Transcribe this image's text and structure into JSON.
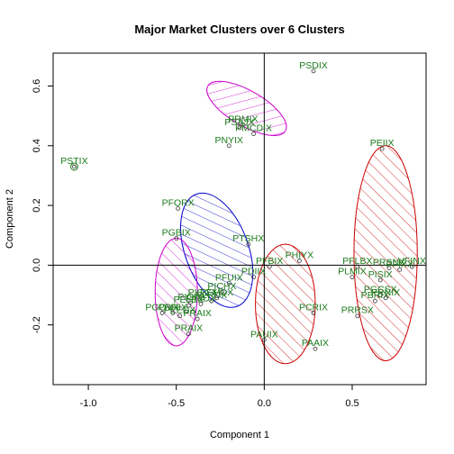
{
  "chart_data": {
    "type": "scatter",
    "title": "Major Market Clusters over 6 Clusters",
    "xlabel": "Component 1",
    "ylabel": "Component 2",
    "xlim": [
      -1.2,
      0.92
    ],
    "ylim": [
      -0.4,
      0.71
    ],
    "xticks": [
      -1.0,
      -0.5,
      0.0,
      0.5
    ],
    "xtick_labels": [
      "-1.0",
      "-0.5",
      "0.0",
      "0.5"
    ],
    "yticks": [
      -0.2,
      0.0,
      0.2,
      0.4,
      0.6
    ],
    "ytick_labels": [
      "-0.2",
      "0.0",
      "0.2",
      "0.4",
      "0.6"
    ],
    "reference_lines": {
      "x": 0,
      "y": 0
    },
    "colors": {
      "points": "#1a7a1a",
      "axes": "#000000"
    },
    "clusters": [
      {
        "color": "#cc00cc",
        "center": [
          -0.1,
          0.525
        ],
        "rx": 0.1,
        "ry": 0.15,
        "angle_deg": 60
      },
      {
        "color": "#0000cc",
        "center": [
          -0.27,
          0.05
        ],
        "rx": 0.18,
        "ry": 0.2,
        "angle_deg": 20
      },
      {
        "color": "#cc00cc",
        "center": [
          -0.5,
          -0.09
        ],
        "rx": 0.12,
        "ry": 0.18,
        "angle_deg": 0
      },
      {
        "color": "#cc0000",
        "center": [
          0.12,
          -0.13
        ],
        "rx": 0.17,
        "ry": 0.2,
        "angle_deg": 0
      },
      {
        "color": "#cc0000",
        "center": [
          0.69,
          0.04
        ],
        "rx": 0.18,
        "ry": 0.36,
        "angle_deg": 0
      },
      {
        "color": "#1a7a1a",
        "center": [
          -1.08,
          0.33
        ],
        "rx": 0.02,
        "ry": 0.012,
        "angle_deg": 0
      }
    ],
    "points": [
      {
        "label": "PSDIX",
        "x": 0.28,
        "y": 0.65
      },
      {
        "label": "PRMIX",
        "x": -0.12,
        "y": 0.47
      },
      {
        "label": "PSAJX",
        "x": -0.14,
        "y": 0.46
      },
      {
        "label": "PMCDIX",
        "x": -0.06,
        "y": 0.44
      },
      {
        "label": "PNYIX",
        "x": -0.2,
        "y": 0.4
      },
      {
        "label": "PSTIX",
        "x": -1.08,
        "y": 0.33
      },
      {
        "label": "PFORX",
        "x": -0.49,
        "y": 0.19
      },
      {
        "label": "PGBIX",
        "x": -0.5,
        "y": 0.09
      },
      {
        "label": "PTSHX",
        "x": -0.09,
        "y": 0.07
      },
      {
        "label": "PHIYX",
        "x": 0.2,
        "y": 0.015
      },
      {
        "label": "PFBIX",
        "x": 0.03,
        "y": -0.005
      },
      {
        "label": "PDIIX",
        "x": -0.06,
        "y": -0.04
      },
      {
        "label": "PFUIX",
        "x": -0.2,
        "y": -0.06
      },
      {
        "label": "PICHX",
        "x": -0.24,
        "y": -0.09
      },
      {
        "label": "PIGCX",
        "x": -0.35,
        "y": -0.11
      },
      {
        "label": "PLRDX",
        "x": -0.3,
        "y": -0.12
      },
      {
        "label": "PEMDX",
        "x": -0.27,
        "y": -0.11
      },
      {
        "label": "PIOIX",
        "x": -0.42,
        "y": -0.125
      },
      {
        "label": "PTLDX",
        "x": -0.36,
        "y": -0.13
      },
      {
        "label": "PELBX",
        "x": -0.43,
        "y": -0.135
      },
      {
        "label": "PGOVX",
        "x": -0.58,
        "y": -0.16
      },
      {
        "label": "PRRIX",
        "x": -0.52,
        "y": -0.16
      },
      {
        "label": "PEEDX",
        "x": -0.48,
        "y": -0.17
      },
      {
        "label": "PRAIX",
        "x": -0.38,
        "y": -0.18
      },
      {
        "label": "PRAIX",
        "x": -0.43,
        "y": -0.23
      },
      {
        "label": "PCRIX",
        "x": 0.28,
        "y": -0.16
      },
      {
        "label": "PAUIX",
        "x": 0.0,
        "y": -0.25
      },
      {
        "label": "PAAIX",
        "x": 0.29,
        "y": -0.28
      },
      {
        "label": "PEIIX",
        "x": 0.67,
        "y": 0.39
      },
      {
        "label": "PFLBX",
        "x": 0.53,
        "y": -0.005
      },
      {
        "label": "VFINX",
        "x": 0.84,
        "y": -0.005
      },
      {
        "label": "PRSNX",
        "x": 0.71,
        "y": -0.01
      },
      {
        "label": "PFIXX",
        "x": 0.77,
        "y": -0.015
      },
      {
        "label": "PLMIX",
        "x": 0.5,
        "y": -0.04
      },
      {
        "label": "PISIX",
        "x": 0.66,
        "y": -0.05
      },
      {
        "label": "PGCSX",
        "x": 0.66,
        "y": -0.1
      },
      {
        "label": "PBRIX",
        "x": 0.63,
        "y": -0.12
      },
      {
        "label": "PRNIX",
        "x": 0.69,
        "y": -0.11
      },
      {
        "label": "PRRSX",
        "x": 0.53,
        "y": -0.17
      }
    ]
  }
}
